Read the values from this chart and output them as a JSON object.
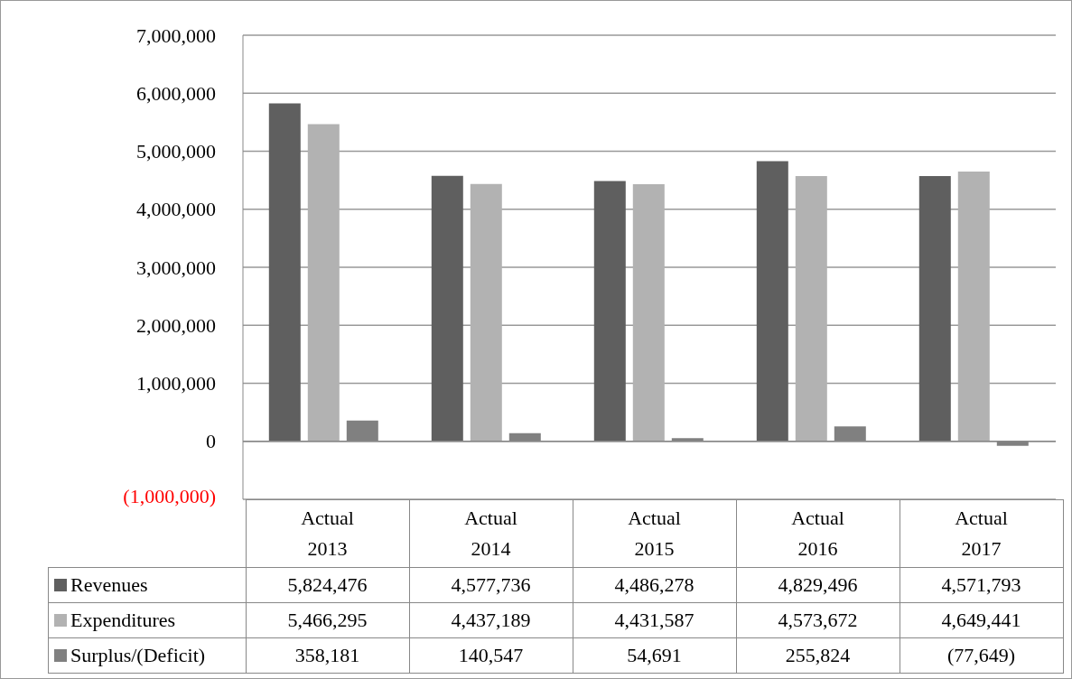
{
  "chart_data": {
    "type": "bar",
    "categories": [
      "Actual 2013",
      "Actual 2014",
      "Actual 2015",
      "Actual 2016",
      "Actual 2017"
    ],
    "series": [
      {
        "name": "Revenues",
        "color": "#5f5f5f",
        "values": [
          5824476,
          4577736,
          4486278,
          4829496,
          4571793
        ],
        "value_labels": [
          "5,824,476",
          "4,577,736",
          "4,486,278",
          "4,829,496",
          "4,571,793"
        ]
      },
      {
        "name": "Expenditures",
        "color": "#b2b2b2",
        "values": [
          5466295,
          4437189,
          4431587,
          4573672,
          4649441
        ],
        "value_labels": [
          "5,466,295",
          "4,437,189",
          "4,431,587",
          "4,573,672",
          "4,649,441"
        ]
      },
      {
        "name": "Surplus/(Deficit)",
        "color": "#808080",
        "values": [
          358181,
          140547,
          54691,
          255824,
          -77649
        ],
        "value_labels": [
          "358,181",
          "140,547",
          "54,691",
          "255,824",
          "(77,649)"
        ]
      }
    ],
    "ylim": [
      -1000000,
      7000000
    ],
    "yticks": [
      {
        "value": -1000000,
        "label": "(1,000,000)"
      },
      0,
      {
        "value": 1000000,
        "label": "1,000,000"
      },
      {
        "value": 2000000,
        "label": "2,000,000"
      },
      {
        "value": 3000000,
        "label": "3,000,000"
      },
      {
        "value": 4000000,
        "label": "4,000,000"
      },
      {
        "value": 5000000,
        "label": "5,000,000"
      },
      {
        "value": 6000000,
        "label": "6,000,000"
      },
      {
        "value": 7000000,
        "label": "7,000,000"
      }
    ],
    "grid": "y",
    "legend": "bottom"
  }
}
